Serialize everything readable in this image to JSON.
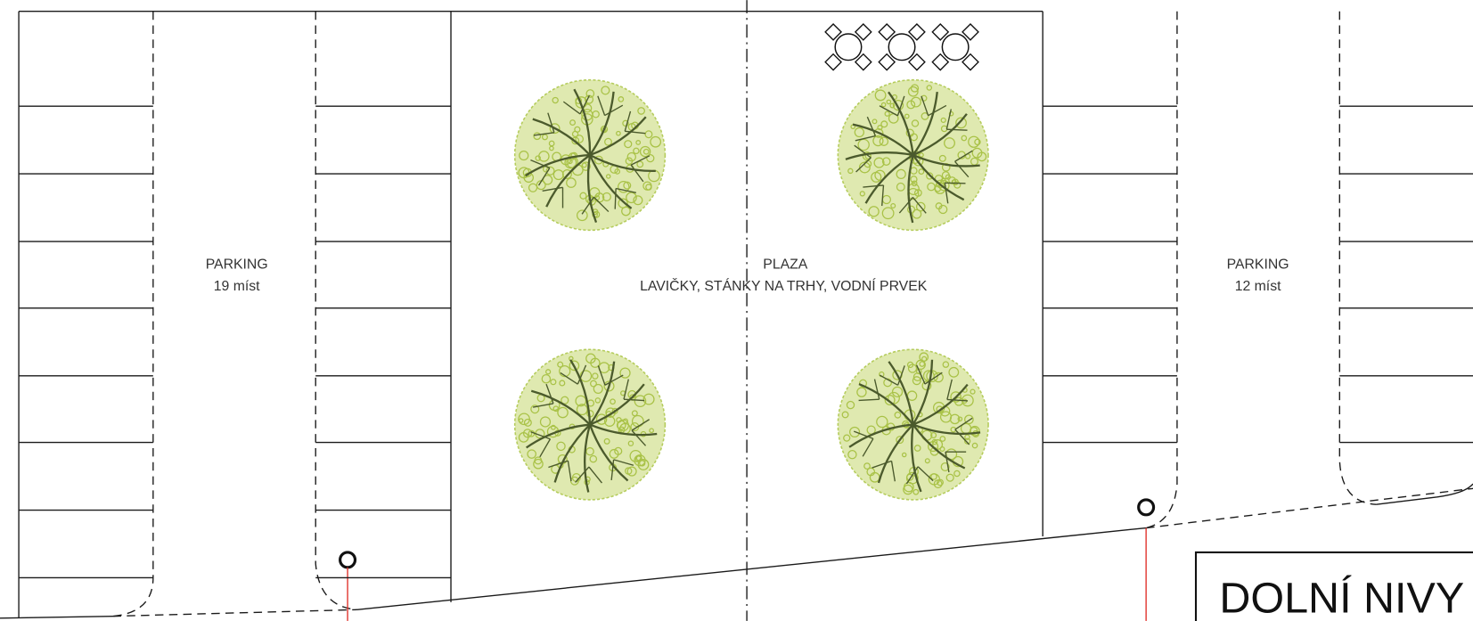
{
  "parking_left": {
    "title": "PARKING",
    "capacity": "19 míst"
  },
  "plaza": {
    "title": "PLAZA",
    "features": "LAVIČKY, STÁNKY NA TRHY, VODNÍ PRVEK"
  },
  "parking_right": {
    "title": "PARKING",
    "capacity": "12 míst"
  },
  "title_block": {
    "name": "DOLNÍ NIVY"
  }
}
